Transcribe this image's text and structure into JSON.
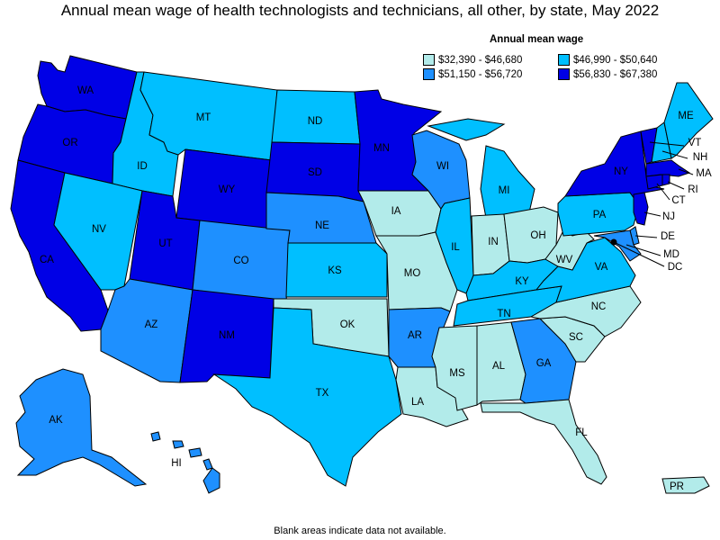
{
  "title": "Annual mean wage of health technologists and technicians, all other, by state, May 2022",
  "legend": {
    "title": "Annual mean wage",
    "items": [
      {
        "label": "$32,390 - $46,680",
        "color": "#b2ebea"
      },
      {
        "label": "$46,990 - $50,640",
        "color": "#00bfff"
      },
      {
        "label": "$51,150 - $56,720",
        "color": "#1e90ff"
      },
      {
        "label": "$56,830 - $67,380",
        "color": "#0000e6"
      }
    ]
  },
  "footnote": "Blank areas indicate data not available.",
  "colors": {
    "c1": "#b2ebea",
    "c2": "#00bfff",
    "c3": "#1e90ff",
    "c4": "#0000e6"
  },
  "states": {
    "WA": {
      "label": "WA",
      "class": 4
    },
    "OR": {
      "label": "OR",
      "class": 4
    },
    "CA": {
      "label": "CA",
      "class": 4
    },
    "ID": {
      "label": "ID",
      "class": 2
    },
    "NV": {
      "label": "NV",
      "class": 2
    },
    "MT": {
      "label": "MT",
      "class": 2
    },
    "WY": {
      "label": "WY",
      "class": 4
    },
    "UT": {
      "label": "UT",
      "class": 4
    },
    "AZ": {
      "label": "AZ",
      "class": 3
    },
    "CO": {
      "label": "CO",
      "class": 3
    },
    "NM": {
      "label": "NM",
      "class": 4
    },
    "ND": {
      "label": "ND",
      "class": 2
    },
    "SD": {
      "label": "SD",
      "class": 4
    },
    "NE": {
      "label": "NE",
      "class": 3
    },
    "KS": {
      "label": "KS",
      "class": 2
    },
    "OK": {
      "label": "OK",
      "class": 1
    },
    "TX": {
      "label": "TX",
      "class": 2
    },
    "MN": {
      "label": "MN",
      "class": 4
    },
    "IA": {
      "label": "IA",
      "class": 1
    },
    "MO": {
      "label": "MO",
      "class": 1
    },
    "AR": {
      "label": "AR",
      "class": 3
    },
    "LA": {
      "label": "LA",
      "class": 1
    },
    "WI": {
      "label": "WI",
      "class": 3
    },
    "IL": {
      "label": "IL",
      "class": 2
    },
    "MI": {
      "label": "MI",
      "class": 2
    },
    "IN": {
      "label": "IN",
      "class": 1
    },
    "OH": {
      "label": "OH",
      "class": 1
    },
    "KY": {
      "label": "KY",
      "class": 2
    },
    "TN": {
      "label": "TN",
      "class": 2
    },
    "MS": {
      "label": "MS",
      "class": 1
    },
    "AL": {
      "label": "AL",
      "class": 1
    },
    "GA": {
      "label": "GA",
      "class": 3
    },
    "FL": {
      "label": "FL",
      "class": 1
    },
    "SC": {
      "label": "SC",
      "class": 1
    },
    "NC": {
      "label": "NC",
      "class": 1
    },
    "VA": {
      "label": "VA",
      "class": 2
    },
    "WV": {
      "label": "WV",
      "class": 1
    },
    "PA": {
      "label": "PA",
      "class": 2
    },
    "NY": {
      "label": "NY",
      "class": 4
    },
    "ME": {
      "label": "ME",
      "class": 2
    },
    "VT": {
      "label": "VT",
      "class": 4
    },
    "NH": {
      "label": "NH",
      "class": 2
    },
    "MA": {
      "label": "MA",
      "class": 4
    },
    "RI": {
      "label": "RI",
      "class": 4
    },
    "CT": {
      "label": "CT",
      "class": 4
    },
    "NJ": {
      "label": "NJ",
      "class": 4
    },
    "DE": {
      "label": "DE",
      "class": 3
    },
    "MD": {
      "label": "MD",
      "class": 3
    },
    "DC": {
      "label": "DC",
      "class": 4
    },
    "AK": {
      "label": "AK",
      "class": 3
    },
    "HI": {
      "label": "HI",
      "class": 3
    },
    "PR": {
      "label": "PR",
      "class": 1
    }
  }
}
